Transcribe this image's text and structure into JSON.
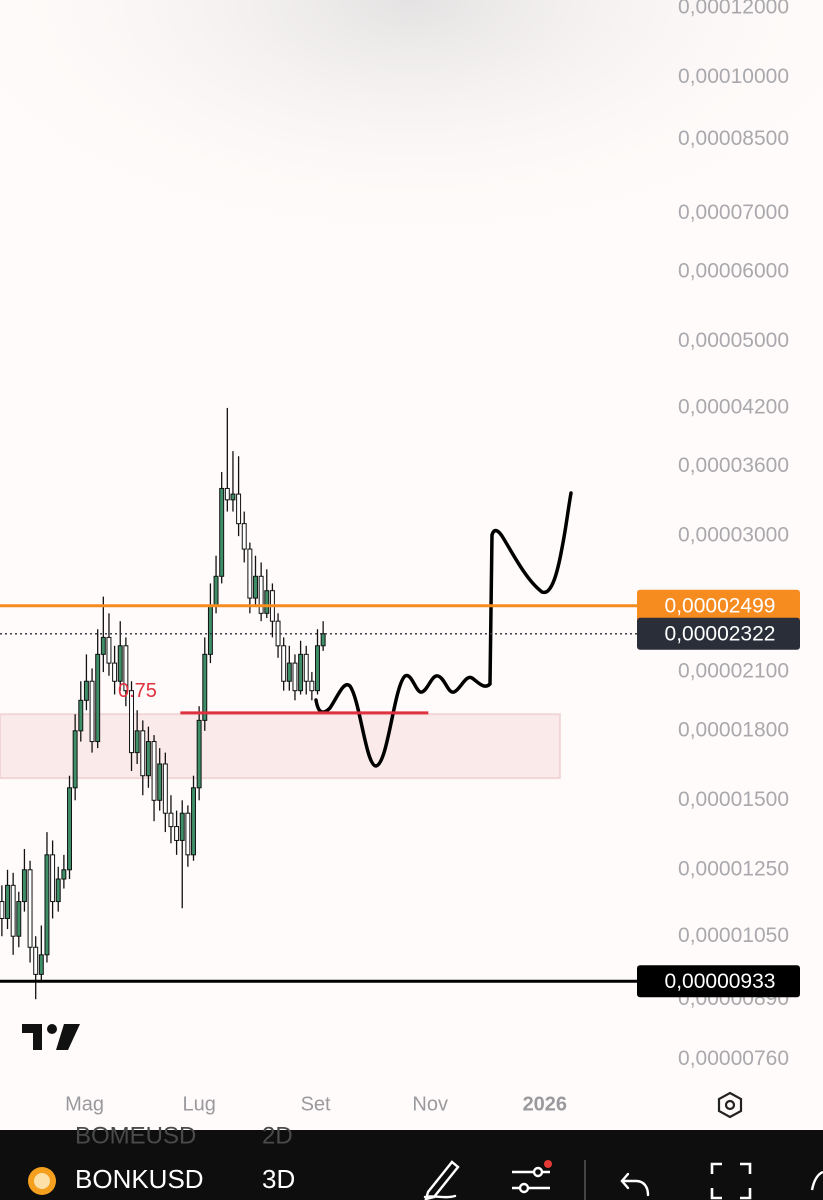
{
  "chart_data": {
    "type": "candlestick",
    "log_scale": true,
    "ylim": [
      7.2e-06,
      0.0001225
    ],
    "yticks": [
      {
        "value": 0.00012,
        "label": "0,00012000"
      },
      {
        "value": 0.0001,
        "label": "0,00010000"
      },
      {
        "value": 8.5e-05,
        "label": "0,00008500"
      },
      {
        "value": 7e-05,
        "label": "0,00007000"
      },
      {
        "value": 6e-05,
        "label": "0,00006000"
      },
      {
        "value": 5e-05,
        "label": "0,00005000"
      },
      {
        "value": 4.2e-05,
        "label": "0,00004200"
      },
      {
        "value": 3.6e-05,
        "label": "0,00003600"
      },
      {
        "value": 3e-05,
        "label": "0,00003000"
      },
      {
        "value": 2.1e-05,
        "label": "0,00002100"
      },
      {
        "value": 1.8e-05,
        "label": "0,00001800"
      },
      {
        "value": 1.5e-05,
        "label": "0,00001500"
      },
      {
        "value": 1.25e-05,
        "label": "0,00001250"
      },
      {
        "value": 1.05e-05,
        "label": "0,00001050"
      },
      {
        "value": 8.9e-06,
        "label": "0,00000890"
      },
      {
        "value": 7.6e-06,
        "label": "0,00000760"
      }
    ],
    "xlim": [
      -15,
      323
    ],
    "xticks": [
      {
        "value": 30,
        "label": "Mag"
      },
      {
        "value": 91,
        "label": "Lug"
      },
      {
        "value": 153,
        "label": "Set"
      },
      {
        "value": 214,
        "label": "Nov"
      },
      {
        "value": 275,
        "label": "2026"
      }
    ],
    "x": [
      -14,
      -11,
      -8,
      -5,
      -2,
      1,
      4,
      7,
      10,
      13,
      16,
      19,
      22,
      25,
      28,
      31,
      34,
      37,
      40,
      43,
      46,
      49,
      52,
      55,
      58,
      61,
      64,
      67,
      70,
      73,
      76,
      79,
      82,
      85,
      88,
      91,
      94,
      97,
      100,
      103,
      106,
      109,
      112,
      115,
      118,
      121,
      124,
      127,
      130,
      133,
      136,
      139,
      142,
      145,
      148,
      151,
      154,
      157
    ],
    "open": [
      1.15e-05,
      1.1e-05,
      1.2e-05,
      1.05e-05,
      1.15e-05,
      1.25e-05,
      1.02e-05,
      9.5e-06,
      1e-05,
      1.3e-05,
      1.15e-05,
      1.22e-05,
      1.25e-05,
      1.55e-05,
      1.8e-05,
      1.95e-05,
      2.05e-05,
      1.75e-05,
      2.2e-05,
      2.3e-05,
      2.15e-05,
      2.05e-05,
      2.25e-05,
      2e-05,
      1.7e-05,
      1.8e-05,
      1.6e-05,
      1.75e-05,
      1.5e-05,
      1.65e-05,
      1.45e-05,
      1.4e-05,
      1.35e-05,
      1.45e-05,
      1.3e-05,
      1.55e-05,
      1.85e-05,
      2.2e-05,
      2.5e-05,
      2.7e-05,
      3.4e-05,
      3.3e-05,
      3.35e-05,
      3.1e-05,
      2.9e-05,
      2.55e-05,
      2.7e-05,
      2.45e-05,
      2.6e-05,
      2.4e-05,
      2.25e-05,
      2.05e-05,
      2.15e-05,
      2e-05,
      2.2e-05,
      2.05e-05,
      2e-05,
      2.25e-05
    ],
    "high": [
      1.2e-05,
      1.25e-05,
      1.24e-05,
      1.18e-05,
      1.32e-05,
      1.28e-05,
      1.05e-05,
      1.08e-05,
      1.38e-05,
      1.35e-05,
      1.26e-05,
      1.3e-05,
      1.6e-05,
      1.88e-05,
      2.05e-05,
      2.2e-05,
      2.12e-05,
      2.35e-05,
      2.56e-05,
      2.45e-05,
      2.25e-05,
      2.4e-05,
      2.3e-05,
      2.05e-05,
      1.9e-05,
      1.85e-05,
      1.82e-05,
      1.78e-05,
      1.72e-05,
      1.7e-05,
      1.52e-05,
      1.46e-05,
      1.5e-05,
      1.48e-05,
      1.6e-05,
      1.92e-05,
      2.3e-05,
      2.65e-05,
      2.85e-05,
      3.55e-05,
      4.2e-05,
      3.75e-05,
      3.7e-05,
      3.2e-05,
      2.95e-05,
      2.85e-05,
      2.8e-05,
      2.75e-05,
      2.65e-05,
      2.45e-05,
      2.3e-05,
      2.25e-05,
      2.2e-05,
      2.28e-05,
      2.25e-05,
      2.1e-05,
      2.35e-05,
      2.4e-05
    ],
    "low": [
      1.05e-05,
      1.07e-05,
      1e-05,
      1.02e-05,
      1.12e-05,
      9.8e-06,
      8.9e-06,
      9.3e-06,
      9.8e-06,
      1.1e-05,
      1.12e-05,
      1.19e-05,
      1.22e-05,
      1.5e-05,
      1.75e-05,
      1.9e-05,
      1.7e-05,
      1.72e-05,
      2.1e-05,
      2.08e-05,
      1.98e-05,
      2e-05,
      1.92e-05,
      1.62e-05,
      1.65e-05,
      1.52e-05,
      1.55e-05,
      1.42e-05,
      1.46e-05,
      1.38e-05,
      1.34e-05,
      1.3e-05,
      1.13e-05,
      1.26e-05,
      1.28e-05,
      1.5e-05,
      1.8e-05,
      2.15e-05,
      2.45e-05,
      2.65e-05,
      3.2e-05,
      3.2e-05,
      3e-05,
      2.8e-05,
      2.45e-05,
      2.5e-05,
      2.4e-05,
      2.42e-05,
      2.3e-05,
      2.18e-05,
      2e-05,
      2e-05,
      1.95e-05,
      1.98e-05,
      1.98e-05,
      1.95e-05,
      1.98e-05,
      2.22e-05
    ],
    "close": [
      1.1e-05,
      1.2e-05,
      1.05e-05,
      1.15e-05,
      1.25e-05,
      1.02e-05,
      9.5e-06,
      1e-05,
      1.3e-05,
      1.15e-05,
      1.22e-05,
      1.25e-05,
      1.55e-05,
      1.8e-05,
      1.95e-05,
      2.05e-05,
      1.75e-05,
      2.2e-05,
      2.3e-05,
      2.15e-05,
      2.05e-05,
      2.25e-05,
      2e-05,
      1.7e-05,
      1.8e-05,
      1.6e-05,
      1.75e-05,
      1.5e-05,
      1.65e-05,
      1.45e-05,
      1.4e-05,
      1.35e-05,
      1.45e-05,
      1.3e-05,
      1.55e-05,
      1.85e-05,
      2.2e-05,
      2.5e-05,
      2.7e-05,
      3.4e-05,
      3.3e-05,
      3.35e-05,
      3.1e-05,
      2.9e-05,
      2.55e-05,
      2.7e-05,
      2.45e-05,
      2.6e-05,
      2.4e-05,
      2.25e-05,
      2.05e-05,
      2.15e-05,
      2e-05,
      2.2e-05,
      2.05e-05,
      2e-05,
      2.25e-05,
      2.322e-05
    ],
    "up_color": "#3e8e68",
    "down_color": "#ffffff",
    "price_lines": [
      {
        "value": 2.499e-05,
        "label": "0,00002499",
        "color": "#f68b1f",
        "style": "solid"
      },
      {
        "value": 2.322e-05,
        "label": "0,00002322",
        "color": "#2a2e39",
        "style": "dotted"
      },
      {
        "value": 9.33e-06,
        "label": "0,00000933",
        "color": "#000000",
        "style": "solid"
      }
    ],
    "level": {
      "value": 1.887e-05,
      "start": 81,
      "end": 213,
      "label": "0.75",
      "color": "#e0313f"
    },
    "zone": {
      "low": 1.59e-05,
      "high": 1.88e-05,
      "start": -15,
      "end": 283
    }
  },
  "toolbar": {
    "symbol": "BONKUSD",
    "interval": "3D",
    "prev_symbol": "BOMEUSD",
    "prev_interval": "2D"
  }
}
